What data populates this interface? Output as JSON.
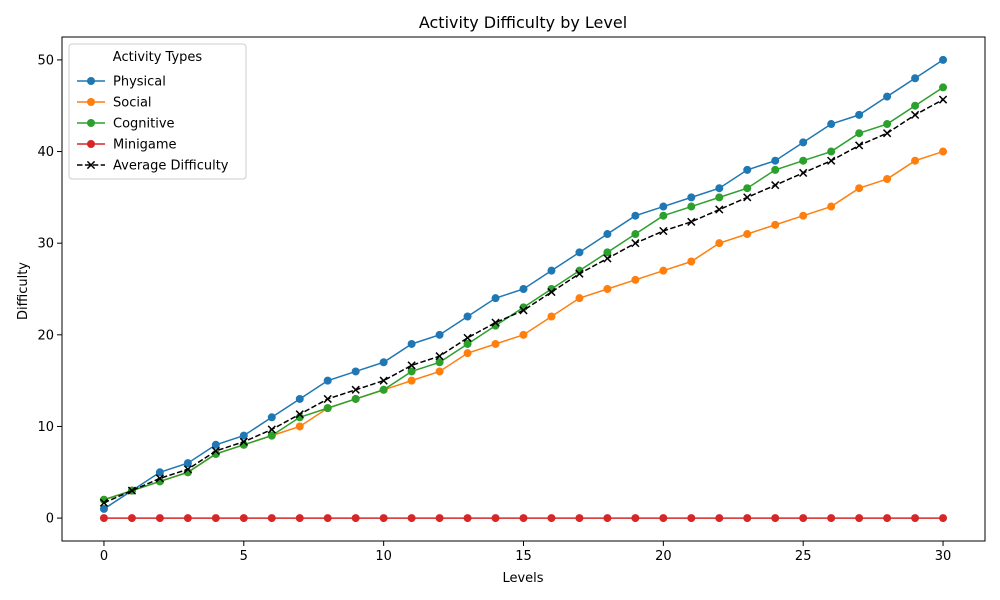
{
  "chart_data": {
    "type": "line",
    "title": "Activity Difficulty by Level",
    "xlabel": "Levels",
    "ylabel": "Difficulty",
    "xlim": [
      -1.5,
      31.5
    ],
    "ylim": [
      -2.5,
      52.5
    ],
    "xticks": [
      0,
      5,
      10,
      15,
      20,
      25,
      30
    ],
    "yticks": [
      0,
      10,
      20,
      30,
      40,
      50
    ],
    "grid": false,
    "legend": {
      "title": "Activity Types",
      "placement": "top-left"
    },
    "x": [
      0,
      1,
      2,
      3,
      4,
      5,
      6,
      7,
      8,
      9,
      10,
      11,
      12,
      13,
      14,
      15,
      16,
      17,
      18,
      19,
      20,
      21,
      22,
      23,
      24,
      25,
      26,
      27,
      28,
      29,
      30
    ],
    "series": [
      {
        "name": "Physical",
        "color": "#1f77b4",
        "marker": "circle",
        "style": "solid",
        "values": [
          1,
          3,
          5,
          6,
          8,
          9,
          11,
          13,
          15,
          16,
          17,
          19,
          20,
          22,
          24,
          25,
          27,
          29,
          31,
          33,
          34,
          35,
          36,
          38,
          39,
          41,
          43,
          44,
          46,
          48,
          50
        ]
      },
      {
        "name": "Social",
        "color": "#ff7f0e",
        "marker": "circle",
        "style": "solid",
        "values": [
          2,
          3,
          4,
          5,
          7,
          8,
          9,
          10,
          12,
          13,
          14,
          15,
          16,
          18,
          19,
          20,
          22,
          24,
          25,
          26,
          27,
          28,
          30,
          31,
          32,
          33,
          34,
          36,
          37,
          39,
          40
        ]
      },
      {
        "name": "Cognitive",
        "color": "#2ca02c",
        "marker": "circle",
        "style": "solid",
        "values": [
          2,
          3,
          4,
          5,
          7,
          8,
          9,
          11,
          12,
          13,
          14,
          16,
          17,
          19,
          21,
          23,
          25,
          27,
          29,
          31,
          33,
          34,
          35,
          36,
          38,
          39,
          40,
          42,
          43,
          45,
          47
        ]
      },
      {
        "name": "Minigame",
        "color": "#d62728",
        "marker": "circle",
        "style": "solid",
        "values": [
          0,
          0,
          0,
          0,
          0,
          0,
          0,
          0,
          0,
          0,
          0,
          0,
          0,
          0,
          0,
          0,
          0,
          0,
          0,
          0,
          0,
          0,
          0,
          0,
          0,
          0,
          0,
          0,
          0,
          0,
          0
        ]
      },
      {
        "name": "Average Difficulty",
        "color": "#000000",
        "marker": "x",
        "style": "dashed",
        "values": [
          1.67,
          3,
          4.33,
          5.33,
          7.33,
          8.33,
          9.67,
          11.33,
          13,
          14,
          15,
          16.67,
          17.67,
          19.67,
          21.33,
          22.67,
          24.67,
          26.67,
          28.33,
          30,
          31.33,
          32.33,
          33.67,
          35,
          36.33,
          37.67,
          39,
          40.67,
          42,
          44,
          45.67
        ]
      }
    ]
  }
}
